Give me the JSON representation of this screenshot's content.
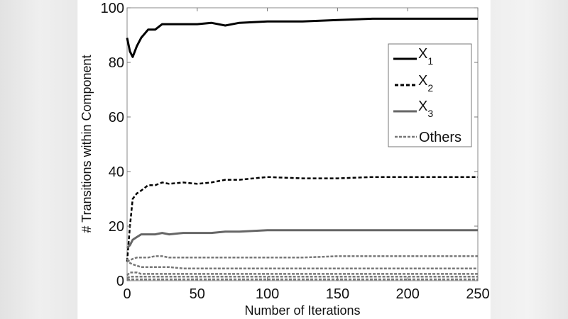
{
  "chart_data": {
    "type": "line",
    "title": "",
    "xlabel": "Number of Iterations",
    "ylabel": "# Transitions within Component",
    "xlim": [
      0,
      250
    ],
    "ylim": [
      0,
      100
    ],
    "xticks": [
      0,
      50,
      100,
      150,
      200,
      250
    ],
    "yticks": [
      0,
      20,
      40,
      60,
      80,
      100
    ],
    "grid": false,
    "legend_position": "upper right",
    "legend": [
      "X1",
      "X2",
      "X3",
      "Others"
    ],
    "x": [
      0,
      2,
      4,
      7,
      10,
      15,
      20,
      25,
      30,
      40,
      50,
      60,
      70,
      80,
      100,
      125,
      150,
      175,
      200,
      225,
      250
    ],
    "series": [
      {
        "name": "X1",
        "style": "solid",
        "color": "#000000",
        "values": [
          89,
          84,
          82,
          86,
          89,
          92,
          92,
          94,
          94,
          94,
          94,
          94.5,
          93.5,
          94.5,
          95,
          95,
          95.5,
          96,
          96,
          96,
          96
        ]
      },
      {
        "name": "X2",
        "style": "dashed",
        "color": "#000000",
        "values": [
          7,
          20,
          30,
          32,
          33,
          35,
          35,
          36,
          35.5,
          36,
          35.5,
          36,
          37,
          37,
          38,
          37.5,
          37.5,
          38,
          38,
          38,
          38
        ]
      },
      {
        "name": "X3",
        "style": "solid",
        "color": "#666666",
        "values": [
          12,
          13,
          15,
          16,
          17,
          17,
          17,
          17.5,
          17,
          17.5,
          17.5,
          17.5,
          18,
          18,
          18.5,
          18.5,
          18.5,
          18.5,
          18.5,
          18.5,
          18.5
        ]
      },
      {
        "name": "Others (a)",
        "style": "dashed",
        "color": "#777777",
        "values": [
          7,
          7.5,
          8,
          8.5,
          8.5,
          8.5,
          9,
          9,
          8.5,
          8.5,
          8.5,
          8.5,
          8.5,
          8.5,
          8.5,
          8.5,
          9,
          9,
          9,
          9,
          9
        ]
      },
      {
        "name": "Others (b)",
        "style": "dashed",
        "color": "#777777",
        "values": [
          8,
          6.5,
          6,
          5.5,
          5,
          5,
          5,
          5,
          5,
          4.5,
          4.5,
          4.5,
          4.5,
          4.5,
          4.5,
          4.5,
          4.5,
          4.5,
          4.5,
          4.5,
          4.5
        ]
      },
      {
        "name": "Others (c)",
        "style": "dashed",
        "color": "#777777",
        "values": [
          2,
          3,
          3,
          3,
          2.5,
          2.5,
          2.5,
          2.5,
          2.5,
          2.5,
          2.5,
          2.5,
          2.5,
          2.5,
          2.5,
          2.5,
          2.5,
          2.5,
          2.5,
          2.5,
          2.5
        ]
      },
      {
        "name": "Others (d)",
        "style": "dashed",
        "color": "#777777",
        "values": [
          1,
          1.5,
          1.5,
          1.5,
          1.5,
          1.5,
          1.5,
          1.5,
          1.5,
          1.5,
          1.5,
          1.5,
          1.5,
          1.5,
          1.5,
          1.5,
          1.5,
          1.5,
          1.5,
          1.5,
          1.5
        ]
      },
      {
        "name": "Others (e)",
        "style": "dashed",
        "color": "#777777",
        "values": [
          0.5,
          0.5,
          0.5,
          0.5,
          0.5,
          0.5,
          0.5,
          0.5,
          0.5,
          0.5,
          0.5,
          0.5,
          0.5,
          0.5,
          0.5,
          0.5,
          0.5,
          0.5,
          0.5,
          0.5,
          0.5
        ]
      }
    ]
  },
  "legend": {
    "items": [
      {
        "base": "X",
        "sub": "1"
      },
      {
        "base": "X",
        "sub": "2"
      },
      {
        "base": "X",
        "sub": "3"
      },
      {
        "base": "Others",
        "sub": ""
      }
    ]
  }
}
